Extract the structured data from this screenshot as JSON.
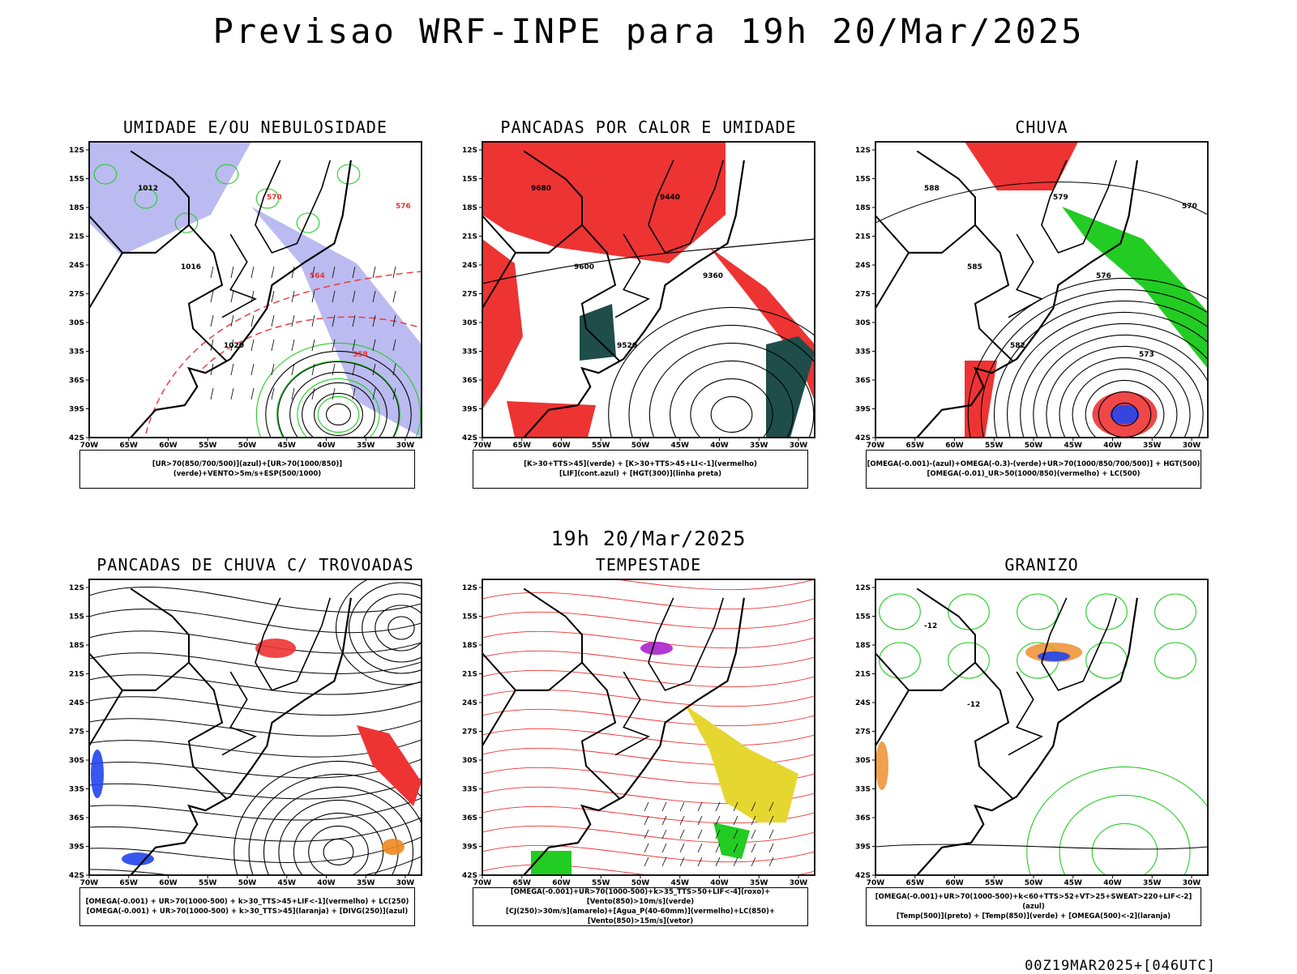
{
  "header": {
    "title": "Previsao WRF-INPE  para 19h 20/Mar/2025",
    "mid_date": "19h 20/Mar/2025",
    "footer": "00Z19MAR2025+[046UTC]"
  },
  "axes": {
    "lat_labels": [
      "12S",
      "15S",
      "18S",
      "21S",
      "24S",
      "27S",
      "30S",
      "33S",
      "36S",
      "39S",
      "42S"
    ],
    "lon_labels": [
      "70W",
      "65W",
      "60W",
      "55W",
      "50W",
      "45W",
      "40W",
      "35W",
      "30W"
    ]
  },
  "colors": {
    "red": "#ee3333",
    "green": "#22cc22",
    "blue": "#2244ee",
    "lavender": "#aaaaee",
    "darkgreen": "#1e4d4a",
    "yellow": "#e6d630",
    "orange": "#ee8822",
    "purple": "#aa22cc"
  },
  "panels": [
    {
      "title": "UMIDADE E/OU NEBULOSIDADE",
      "caption1": "[UR>70(850/700/500)](azul)+[UR>70(1000/850)](verde)+VENTO>5m/s+ESP(500/1000)",
      "caption2": "",
      "labels": [
        "1012",
        "1016",
        "1020",
        "570",
        "564",
        "558",
        "576"
      ]
    },
    {
      "title": "PANCADAS POR CALOR E UMIDADE",
      "caption1": "[K>30+TTS>45](verde) + [K>30+TTS>45+LI<-1](vermelho)",
      "caption2": "[LIF](cont.azul) + [HGT(300)](linha preta)",
      "labels": [
        "9680",
        "9600",
        "9520",
        "9440",
        "9360"
      ]
    },
    {
      "title": "CHUVA",
      "caption1": "[OMEGA(-0.001)-(azul)+OMEGA(-0.3)-(verde)+UR>70(1000/850/700/500)] + HGT(500)",
      "caption2": "[OMEGA(-0.01)_UR>50(1000/850)(vermelho) + LC(500)",
      "labels": [
        "588",
        "585",
        "582",
        "579",
        "576",
        "573",
        "570"
      ]
    },
    {
      "title": "PANCADAS DE CHUVA C/ TROVOADAS",
      "caption1": "[OMEGA(-0.001) + UR>70(1000-500) + k>30_TTS>45+LIF<-1](vermelho) + LC(250)",
      "caption2": "[OMEGA(-0.001) + UR>70(1000-500) + k>30_TTS>45](laranja) + [DIVG(250)](azul)",
      "labels": []
    },
    {
      "title": "TEMPESTADE",
      "caption1": "[OMEGA(-0.001)+UR>70(1000-500)+k>35_TTS>50+LIF<-4](roxo)+[Vento(850)>10m/s](verde)",
      "caption2": "[CJ(250)>30m/s](amarelo)+[Agua_P(40-60mm)](vermelho)+LC(850)+[Vento(850)>15m/s](vetor)",
      "labels": []
    },
    {
      "title": "GRANIZO",
      "caption1": "[OMEGA(-0.001)+UR>70(1000-500)+k<60+TTS>52+VT>25+SWEAT>220+LIF<-2](azul)",
      "caption2": "[Temp(500)](preto) + [Temp(850)](verde) + [OMEGA(500)<-2](laranja)",
      "labels": [
        "-12",
        "-12"
      ]
    }
  ]
}
